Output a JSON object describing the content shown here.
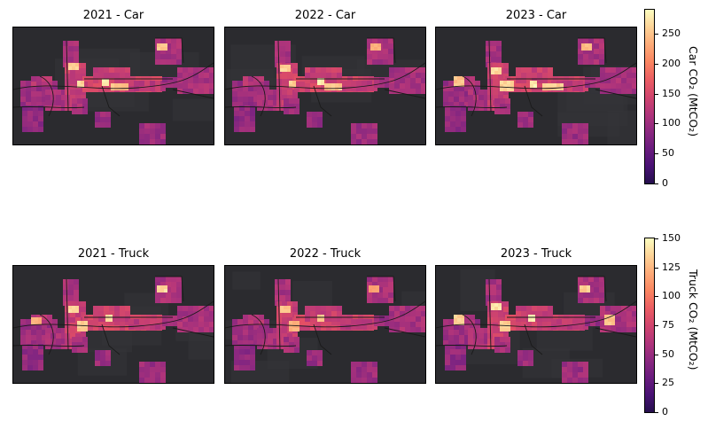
{
  "panels": [
    {
      "title": "2021 - Car",
      "mode": "car"
    },
    {
      "title": "2022 - Car",
      "mode": "car"
    },
    {
      "title": "2023 - Car",
      "mode": "car"
    },
    {
      "title": "2021 - Truck",
      "mode": "truck"
    },
    {
      "title": "2022 - Truck",
      "mode": "truck"
    },
    {
      "title": "2023 - Truck",
      "mode": "truck"
    }
  ],
  "colorbars": {
    "car": {
      "label": "Car CO₂ (MtCO₂)",
      "min": 0,
      "max": 290,
      "ticks": [
        "0",
        "50",
        "100",
        "150",
        "200",
        "250"
      ]
    },
    "truck": {
      "label": "Truck CO₂ (MtCO₂)",
      "min": 0,
      "max": 150,
      "ticks": [
        "0",
        "25",
        "50",
        "75",
        "100",
        "125",
        "150"
      ]
    }
  },
  "colormap": "magma",
  "colors": {
    "basemap": "#2b2b2f",
    "basemap_land": "#333338",
    "road": "#1a1a1a"
  }
}
